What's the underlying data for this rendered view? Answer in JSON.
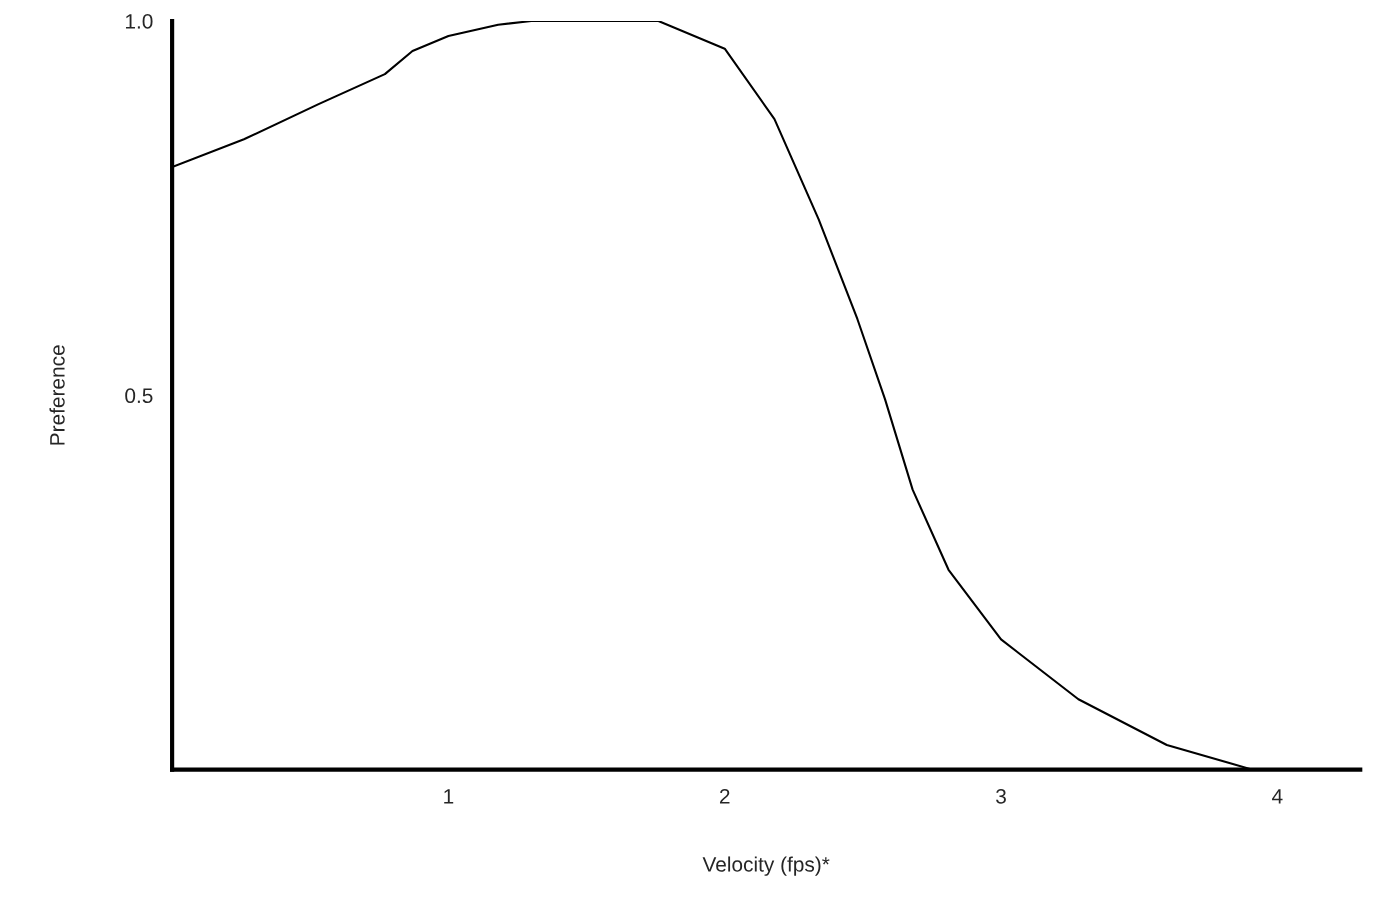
{
  "chart_data": {
    "type": "line",
    "xlabel": "Velocity (fps)*",
    "ylabel": "Preference",
    "x": [
      0,
      0.26,
      0.53,
      0.77,
      0.87,
      1.0,
      1.18,
      1.3,
      1.5,
      1.76,
      2.0,
      2.18,
      2.34,
      2.48,
      2.58,
      2.68,
      2.81,
      3.0,
      3.28,
      3.6,
      3.91
    ],
    "series": [
      {
        "color": "#000000",
        "values": [
          0.805,
          0.842,
          0.889,
          0.929,
          0.96,
          0.98,
          0.995,
          1.0,
          1.0,
          1.0,
          0.963,
          0.869,
          0.735,
          0.602,
          0.495,
          0.374,
          0.267,
          0.174,
          0.094,
          0.033,
          0.0
        ]
      }
    ],
    "xlim": [
      0,
      4.3
    ],
    "ylim": [
      0,
      1.0
    ],
    "xticks": [
      1,
      2,
      3,
      4
    ],
    "yticks": [
      {
        "value": 0.5,
        "label": "0.5"
      },
      {
        "value": 1.0,
        "label": "1.0"
      }
    ],
    "grid": false,
    "marker": "none",
    "line_style": "solid"
  }
}
